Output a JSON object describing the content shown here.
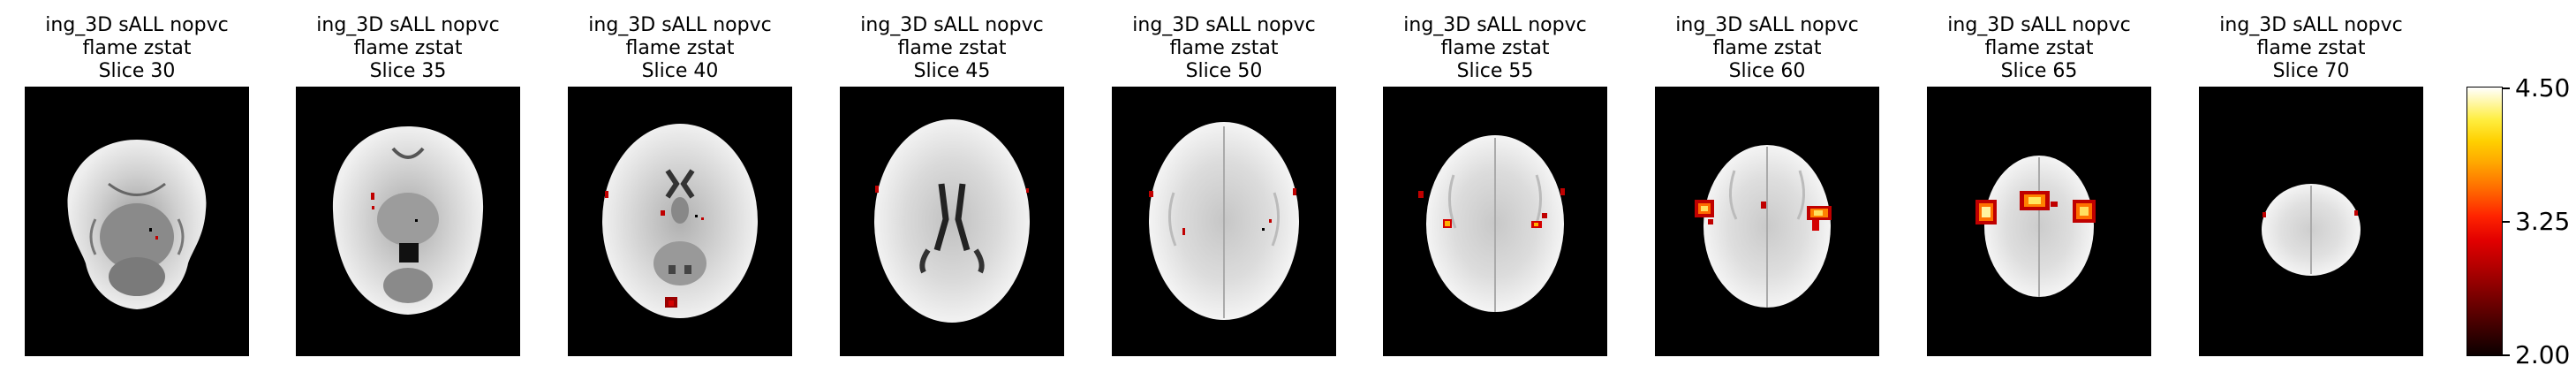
{
  "panels": [
    {
      "title_line1": "ing_3D sALL nopvc",
      "title_line2": "flame zstat",
      "title_line3": "Slice 30"
    },
    {
      "title_line1": "ing_3D sALL nopvc",
      "title_line2": "flame zstat",
      "title_line3": "Slice 35"
    },
    {
      "title_line1": "ing_3D sALL nopvc",
      "title_line2": "flame zstat",
      "title_line3": "Slice 40"
    },
    {
      "title_line1": "ing_3D sALL nopvc",
      "title_line2": "flame zstat",
      "title_line3": "Slice 45"
    },
    {
      "title_line1": "ing_3D sALL nopvc",
      "title_line2": "flame zstat",
      "title_line3": "Slice 50"
    },
    {
      "title_line1": "ing_3D sALL nopvc",
      "title_line2": "flame zstat",
      "title_line3": "Slice 55"
    },
    {
      "title_line1": "ing_3D sALL nopvc",
      "title_line2": "flame zstat",
      "title_line3": "Slice 60"
    },
    {
      "title_line1": "ing_3D sALL nopvc",
      "title_line2": "flame zstat",
      "title_line3": "Slice 65"
    },
    {
      "title_line1": "ing_3D sALL nopvc",
      "title_line2": "flame zstat",
      "title_line3": "Slice 70"
    }
  ],
  "colorbar": {
    "min_label": "2.00",
    "mid_label": "3.25",
    "max_label": "4.50",
    "colormap": "hot"
  }
}
